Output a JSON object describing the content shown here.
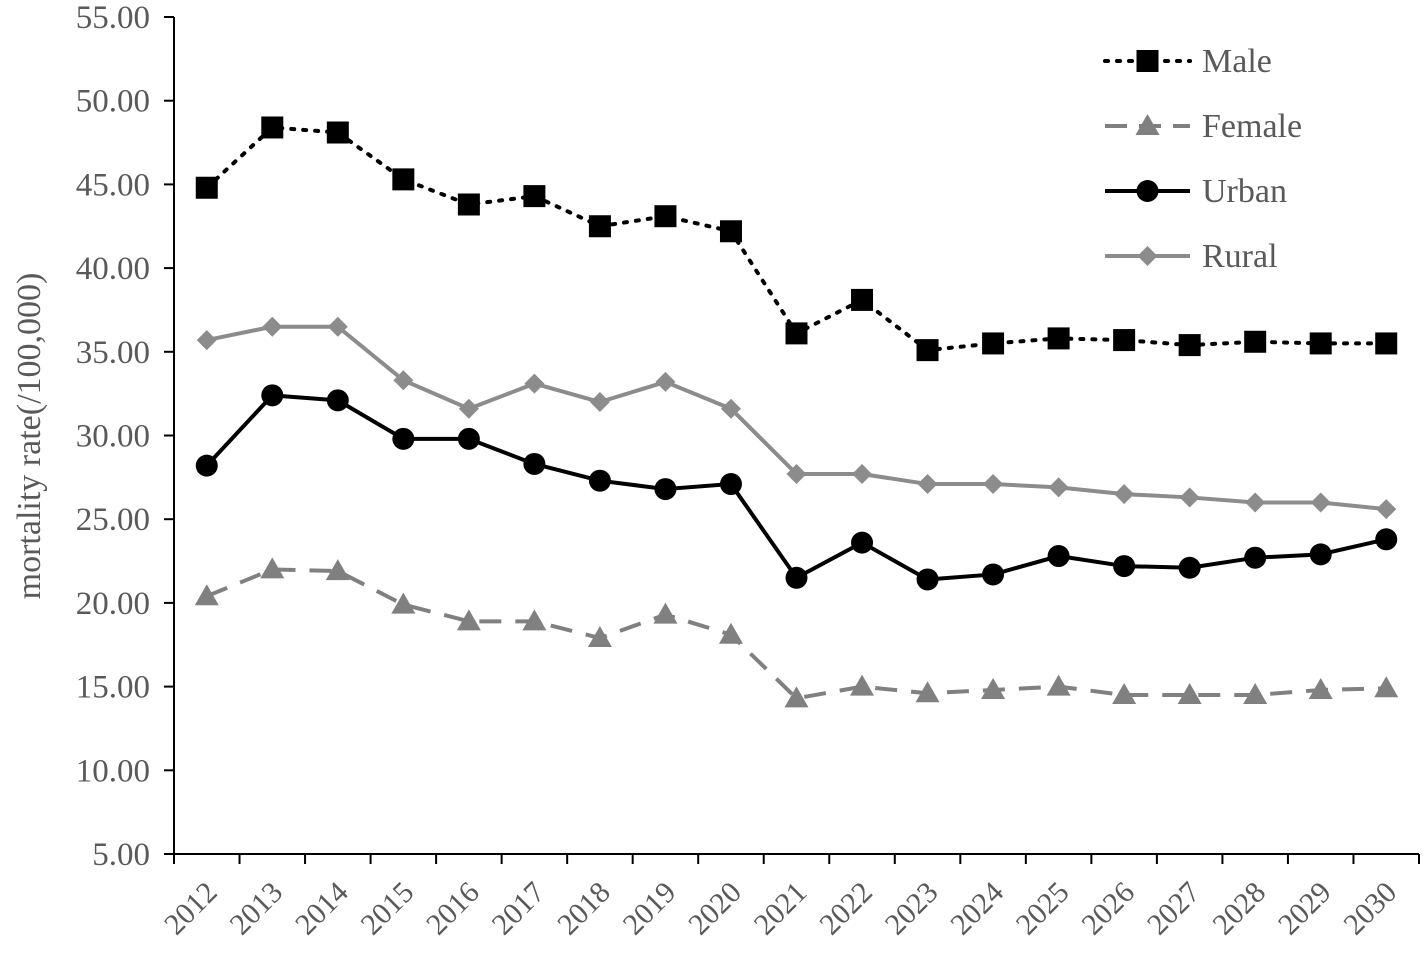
{
  "chart_data": {
    "type": "line",
    "title": "",
    "xlabel": "",
    "ylabel": "mortality rate(/100,000)",
    "ylim": [
      5,
      55
    ],
    "yticks": [
      "5.00",
      "10.00",
      "15.00",
      "20.00",
      "25.00",
      "30.00",
      "35.00",
      "40.00",
      "45.00",
      "50.00",
      "55.00"
    ],
    "categories": [
      "2012",
      "2013",
      "2014",
      "2015",
      "2016",
      "2017",
      "2018",
      "2019",
      "2020",
      "2021",
      "2022",
      "2023",
      "2024",
      "2025",
      "2026",
      "2027",
      "2028",
      "2029",
      "2030"
    ],
    "grid": false,
    "legend_position": "top-right",
    "series": [
      {
        "name": "Male",
        "color": "#000000",
        "line_style": "dotted",
        "marker": "square",
        "values": [
          44.8,
          48.4,
          48.1,
          45.3,
          43.8,
          44.3,
          42.5,
          43.1,
          42.2,
          36.1,
          38.1,
          35.1,
          35.5,
          35.8,
          35.7,
          35.4,
          35.6,
          35.5,
          35.5
        ]
      },
      {
        "name": "Female",
        "color": "#808080",
        "line_style": "dashed",
        "marker": "triangle",
        "values": [
          20.4,
          22.0,
          21.9,
          19.9,
          18.9,
          18.9,
          17.9,
          19.3,
          18.1,
          14.3,
          15.0,
          14.6,
          14.8,
          15.0,
          14.5,
          14.5,
          14.5,
          14.8,
          14.9
        ]
      },
      {
        "name": "Urban",
        "color": "#000000",
        "line_style": "solid",
        "marker": "circle",
        "values": [
          28.2,
          32.4,
          32.1,
          29.8,
          29.8,
          28.3,
          27.3,
          26.8,
          27.1,
          21.5,
          23.6,
          21.4,
          21.7,
          22.8,
          22.2,
          22.1,
          22.7,
          22.9,
          23.8
        ]
      },
      {
        "name": "Rural",
        "color": "#8c8c8c",
        "line_style": "solid",
        "marker": "diamond",
        "values": [
          35.7,
          36.5,
          36.5,
          33.3,
          31.6,
          33.1,
          32.0,
          33.2,
          31.6,
          27.7,
          27.7,
          27.1,
          27.1,
          26.9,
          26.5,
          26.3,
          26.0,
          26.0,
          25.6
        ]
      }
    ]
  }
}
